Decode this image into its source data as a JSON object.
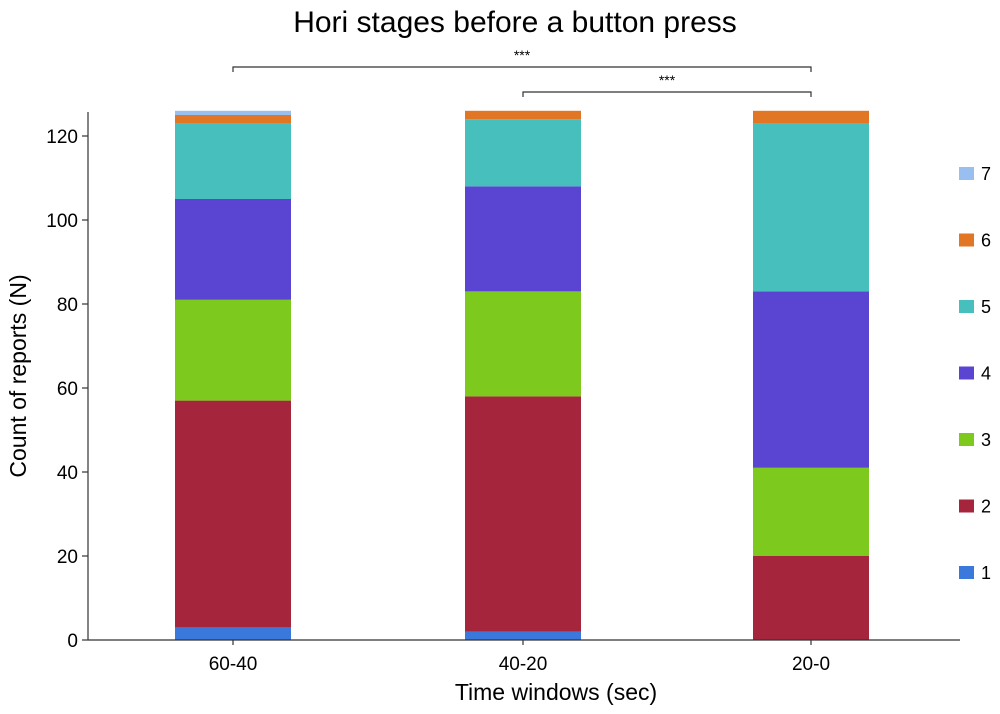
{
  "chart_data": {
    "type": "bar",
    "stacked": true,
    "title": "Hori stages before a button press",
    "xlabel": "Time windows (sec)",
    "ylabel": "Count of reports (N)",
    "categories": [
      "60-40",
      "40-20",
      "20-0"
    ],
    "ylim": [
      0,
      126
    ],
    "yticks": [
      0,
      20,
      40,
      60,
      80,
      100,
      120
    ],
    "grid": false,
    "legend_position": "right",
    "series": [
      {
        "name": "1",
        "color": "#3b78db",
        "values": [
          3,
          2,
          0
        ]
      },
      {
        "name": "2",
        "color": "#a5263c",
        "values": [
          54,
          56,
          20
        ]
      },
      {
        "name": "3",
        "color": "#7dc91d",
        "values": [
          24,
          25,
          21
        ]
      },
      {
        "name": "4",
        "color": "#5a45d3",
        "values": [
          24,
          25,
          42
        ]
      },
      {
        "name": "5",
        "color": "#47bfbd",
        "values": [
          18,
          16,
          40
        ]
      },
      {
        "name": "6",
        "color": "#e17725",
        "values": [
          2,
          2,
          3
        ]
      },
      {
        "name": "7",
        "color": "#98bff0",
        "values": [
          1,
          0,
          0
        ]
      }
    ],
    "significance": [
      {
        "from": "60-40",
        "to": "20-0",
        "label": "***"
      },
      {
        "from": "40-20",
        "to": "20-0",
        "label": "***"
      }
    ]
  }
}
